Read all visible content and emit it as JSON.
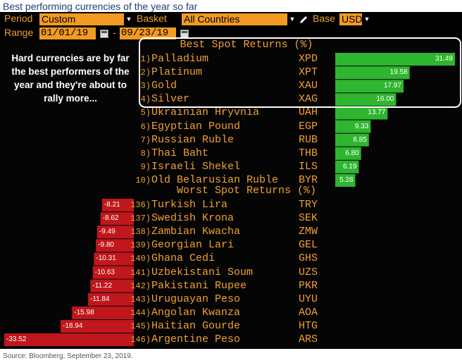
{
  "title": "Best performing currencies of the year so far",
  "source": "Source: Bloomberg; September 23, 2019.",
  "toolbar": {
    "period_label": "Period",
    "period_value": "Custom",
    "basket_label": "Basket",
    "basket_value": "All Countries",
    "base_label": "Base",
    "base_value": "USD",
    "range_label": "Range",
    "start_date": "01/01/19",
    "date_separator": "-",
    "end_date": "09/23/19"
  },
  "note": "Hard currencies are by far the best performers of the year and they're about to rally more...",
  "colors": {
    "best": "#2fb52f",
    "worst": "#c0171c",
    "text": "#f0a030",
    "field": "#f29a22"
  },
  "chart_data": {
    "type": "bar",
    "units": "spot return (%)",
    "best": {
      "title": "Best Spot Returns (%)",
      "rows": [
        {
          "rank": "1)",
          "name": "Palladium",
          "code": "XPD",
          "value": 31.49,
          "label": "31.49"
        },
        {
          "rank": "2)",
          "name": "Platinum",
          "code": "XPT",
          "value": 19.58,
          "label": "19.58"
        },
        {
          "rank": "3)",
          "name": "Gold",
          "code": "XAU",
          "value": 17.97,
          "label": "17.97"
        },
        {
          "rank": "4)",
          "name": "Silver",
          "code": "XAG",
          "value": 16.0,
          "label": "16.00"
        },
        {
          "rank": "5)",
          "name": "Ukrainian Hryvnia",
          "code": "UAH",
          "value": 13.77,
          "label": "13.77"
        },
        {
          "rank": "6)",
          "name": "Egyptian Pound",
          "code": "EGP",
          "value": 9.33,
          "label": "9.33"
        },
        {
          "rank": "7)",
          "name": "Russian Ruble",
          "code": "RUB",
          "value": 8.85,
          "label": "8.85"
        },
        {
          "rank": "8)",
          "name": "Thai Baht",
          "code": "THB",
          "value": 6.8,
          "label": "6.80"
        },
        {
          "rank": "9)",
          "name": "Israeli Shekel",
          "code": "ILS",
          "value": 6.19,
          "label": "6.19"
        },
        {
          "rank": "10)",
          "name": "Old Belarusian Ruble",
          "code": "BYR",
          "value": 5.28,
          "label": "5.28"
        }
      ]
    },
    "worst": {
      "title": "Worst Spot Returns (%)",
      "rows": [
        {
          "rank": "136)",
          "name": "Turkish Lira",
          "code": "TRY",
          "value": -8.21,
          "label": "-8.21"
        },
        {
          "rank": "137)",
          "name": "Swedish Krona",
          "code": "SEK",
          "value": -8.62,
          "label": "-8.62"
        },
        {
          "rank": "138)",
          "name": "Zambian Kwacha",
          "code": "ZMW",
          "value": -9.49,
          "label": "-9.49"
        },
        {
          "rank": "139)",
          "name": "Georgian Lari",
          "code": "GEL",
          "value": -9.8,
          "label": "-9.80"
        },
        {
          "rank": "140)",
          "name": "Ghana Cedi",
          "code": "GHS",
          "value": -10.31,
          "label": "-10.31"
        },
        {
          "rank": "141)",
          "name": "Uzbekistani Soum",
          "code": "UZS",
          "value": -10.63,
          "label": "-10.63"
        },
        {
          "rank": "142)",
          "name": "Pakistani Rupee",
          "code": "PKR",
          "value": -11.22,
          "label": "-11.22"
        },
        {
          "rank": "143)",
          "name": "Uruguayan Peso",
          "code": "UYU",
          "value": -11.84,
          "label": "-11.84"
        },
        {
          "rank": "144)",
          "name": "Angolan Kwanza",
          "code": "AOA",
          "value": -15.98,
          "label": "-15.98"
        },
        {
          "rank": "145)",
          "name": "Haitian Gourde",
          "code": "HTG",
          "value": -18.94,
          "label": "-18.94"
        },
        {
          "rank": "146)",
          "name": "Argentine Peso",
          "code": "ARS",
          "value": -33.52,
          "label": "-33.52"
        }
      ]
    }
  }
}
